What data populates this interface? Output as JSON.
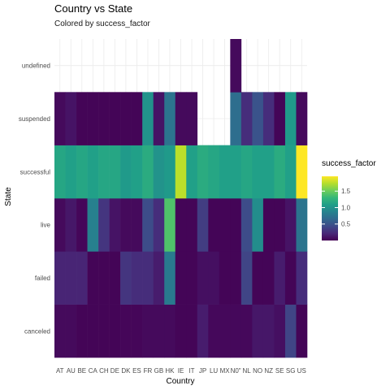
{
  "chart_data": {
    "type": "heatmap",
    "title": "Country vs State",
    "subtitle": "Colored by success_factor",
    "xlabel": "Country",
    "ylabel": "State",
    "x_categories": [
      "AT",
      "AU",
      "BE",
      "CA",
      "CH",
      "DE",
      "DK",
      "ES",
      "FR",
      "GB",
      "HK",
      "IE",
      "IT",
      "JP",
      "LU",
      "MX",
      "N0\"",
      "NL",
      "NO",
      "NZ",
      "SE",
      "SG",
      "US"
    ],
    "y_categories": [
      "canceled",
      "failed",
      "live",
      "successful",
      "suspended",
      "undefined"
    ],
    "values": {
      "canceled": [
        0.05,
        0.05,
        0.02,
        0.02,
        0.02,
        0.02,
        0.03,
        0.03,
        0.05,
        0.05,
        0.05,
        0.02,
        0.02,
        0.15,
        0.04,
        0.04,
        0.04,
        0.04,
        0.12,
        0.12,
        0.08,
        0.4,
        0.02
      ],
      "failed": [
        0.2,
        0.2,
        0.2,
        0.02,
        0.02,
        0.02,
        0.3,
        0.25,
        0.25,
        0.15,
        0.8,
        0.02,
        0.02,
        0.08,
        0.08,
        0.02,
        0.02,
        0.4,
        0.02,
        0.02,
        0.15,
        0.02,
        0.25
      ],
      "live": [
        0.05,
        0.12,
        0.03,
        0.85,
        0.3,
        0.1,
        0.05,
        0.05,
        0.45,
        0.25,
        1.4,
        0.02,
        0.02,
        0.35,
        0.02,
        0.02,
        0.02,
        0.45,
        0.95,
        0.02,
        0.02,
        0.1,
        0.75
      ],
      "successful": [
        1.15,
        1.1,
        1.15,
        1.1,
        1.15,
        1.15,
        1.05,
        1.1,
        1.2,
        1.0,
        1.05,
        1.75,
        1.1,
        1.2,
        1.15,
        1.1,
        1.1,
        1.15,
        1.1,
        1.1,
        1.2,
        1.1,
        1.95
      ],
      "suspended": [
        0.05,
        0.1,
        0.02,
        0.02,
        0.02,
        0.02,
        0.02,
        0.02,
        1.0,
        0.1,
        0.75,
        0.05,
        0.05,
        null,
        null,
        null,
        0.7,
        0.25,
        0.5,
        0.25,
        0.02,
        1.05,
        0.05
      ],
      "undefined": [
        null,
        null,
        null,
        null,
        null,
        null,
        null,
        null,
        null,
        null,
        null,
        null,
        null,
        null,
        null,
        null,
        0.05,
        null,
        null,
        null,
        null,
        null,
        null
      ]
    },
    "colorscale": "viridis",
    "legend": {
      "title": "success_factor",
      "ticks": [
        "0.5",
        "1.0",
        "1.5"
      ],
      "tick_values": [
        0.5,
        1.0,
        1.5
      ],
      "range": [
        0.0,
        1.95
      ],
      "placement": "right"
    },
    "grid": true
  }
}
